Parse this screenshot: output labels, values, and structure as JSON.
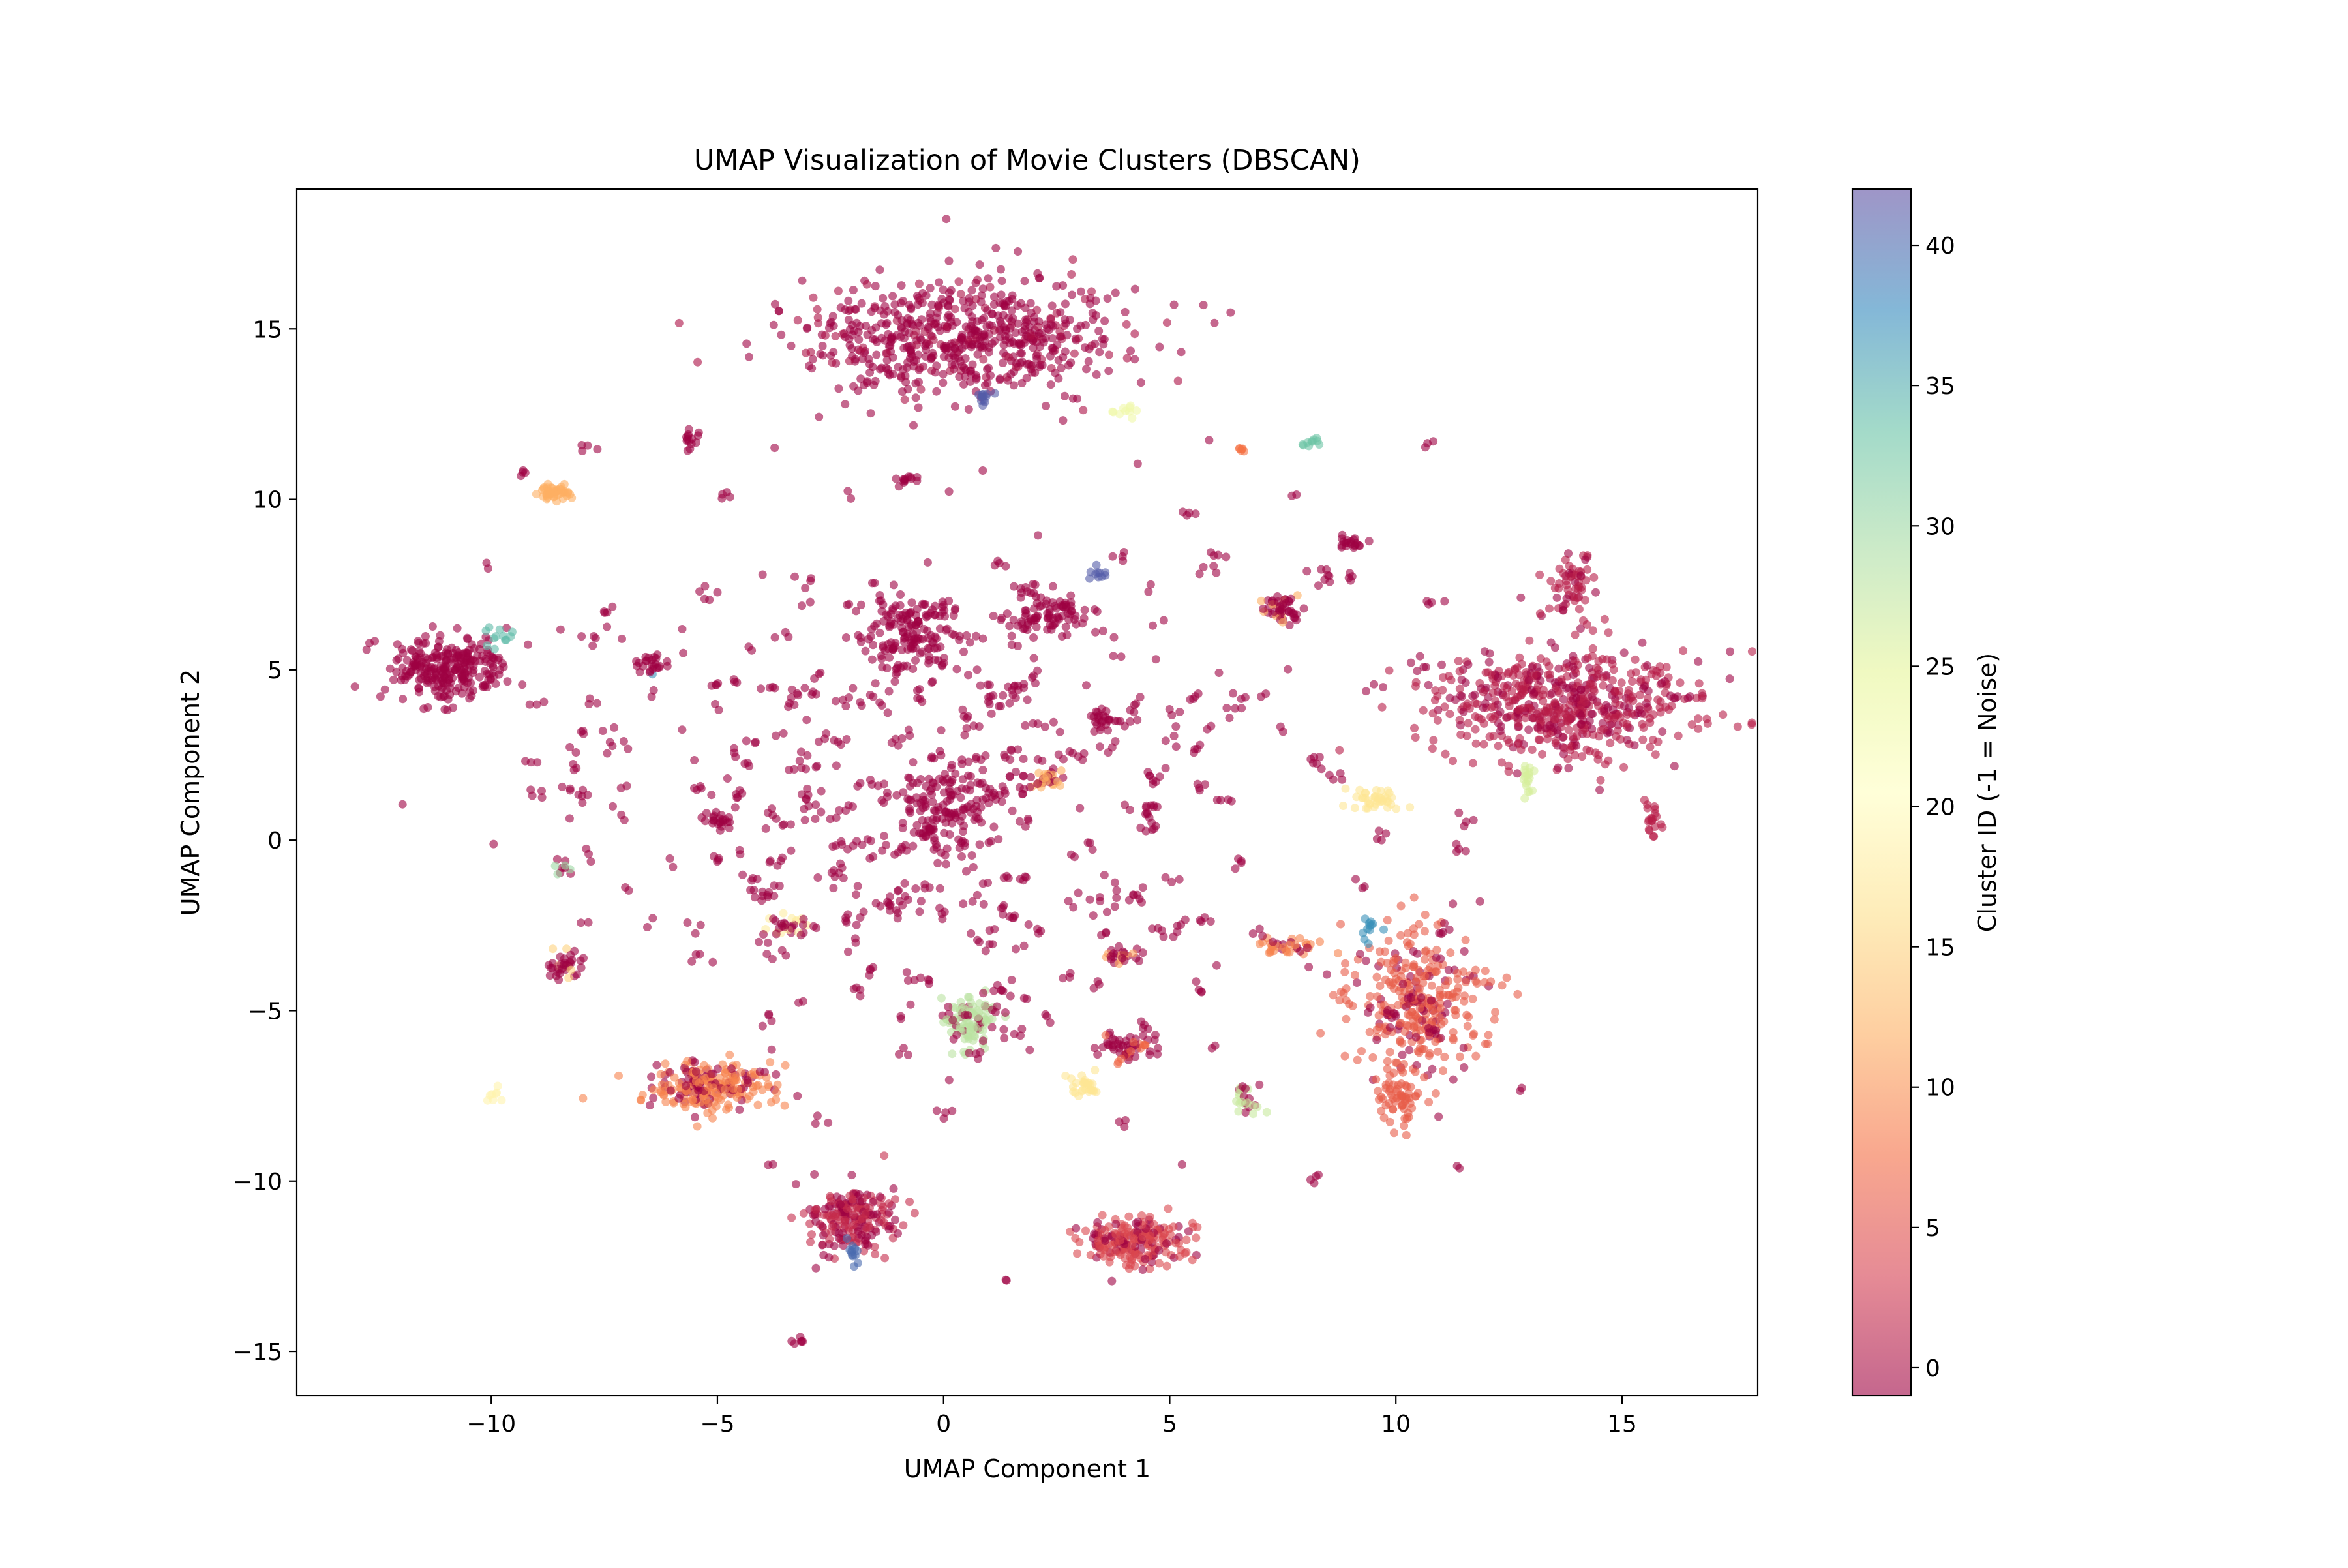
{
  "chart_data": {
    "type": "scatter",
    "title": "UMAP Visualization of Movie Clusters (DBSCAN)",
    "xlabel": "UMAP Component 1",
    "ylabel": "UMAP Component 2",
    "xlim": [
      -14.3,
      18
    ],
    "ylim": [
      -16.3,
      19.1
    ],
    "x_ticks": [
      -10,
      -5,
      0,
      5,
      10,
      15
    ],
    "y_ticks": [
      -15,
      -10,
      -5,
      0,
      5,
      10,
      15
    ],
    "x_tick_labels": [
      "−10",
      "−5",
      "0",
      "5",
      "10",
      "15"
    ],
    "y_tick_labels": [
      "−15",
      "−10",
      "−5",
      "0",
      "5",
      "10",
      "15"
    ],
    "grid": false,
    "colormap": "Spectral (alpha 0.6)",
    "colorbar": {
      "label": "Cluster ID (-1 = Noise)",
      "range": [
        -1,
        42
      ],
      "ticks": [
        0,
        5,
        10,
        15,
        20,
        25,
        30,
        35,
        40
      ],
      "tick_labels": [
        "0",
        "5",
        "10",
        "15",
        "20",
        "25",
        "30",
        "35",
        "40"
      ],
      "stops": [
        "#9e0142",
        "#d53e4f",
        "#f46d43",
        "#fdae61",
        "#fee08b",
        "#ffffbf",
        "#e6f598",
        "#abdda4",
        "#66c2a5",
        "#3288bd",
        "#5e4fa2"
      ]
    },
    "clusters": [
      {
        "id": 0,
        "cx": 0.5,
        "cy": 14.8,
        "rx": 3.3,
        "ry": 1.6,
        "n": 620,
        "mix": [
          [
            -1,
            0.85
          ],
          [
            0,
            0.15
          ]
        ]
      },
      {
        "id": 1,
        "cx": 13.7,
        "cy": 4.0,
        "rx": 2.6,
        "ry": 1.5,
        "n": 580,
        "mix": [
          [
            1,
            0.7
          ],
          [
            -1,
            0.3
          ]
        ]
      },
      {
        "id": 2,
        "cx": 13.9,
        "cy": 7.5,
        "rx": 0.5,
        "ry": 0.8,
        "n": 60,
        "mix": [
          [
            1,
            0.8
          ],
          [
            -1,
            0.2
          ]
        ]
      },
      {
        "id": 3,
        "cx": -10.9,
        "cy": 5.0,
        "rx": 1.2,
        "ry": 0.9,
        "n": 260,
        "mix": [
          [
            -1,
            1.0
          ]
        ]
      },
      {
        "id": 4,
        "cx": 10.5,
        "cy": -4.6,
        "rx": 1.3,
        "ry": 1.9,
        "n": 330,
        "mix": [
          [
            6,
            0.75
          ],
          [
            -1,
            0.25
          ]
        ]
      },
      {
        "id": 5,
        "cx": 10.1,
        "cy": -7.6,
        "rx": 0.4,
        "ry": 0.9,
        "n": 60,
        "mix": [
          [
            6,
            1.0
          ]
        ]
      },
      {
        "id": 6,
        "cx": -5.2,
        "cy": -7.2,
        "rx": 1.3,
        "ry": 0.7,
        "n": 230,
        "mix": [
          [
            9,
            0.7
          ],
          [
            -1,
            0.3
          ]
        ]
      },
      {
        "id": 7,
        "cx": -2.0,
        "cy": -11.1,
        "rx": 0.9,
        "ry": 0.9,
        "n": 200,
        "mix": [
          [
            2,
            0.6
          ],
          [
            -1,
            0.4
          ]
        ]
      },
      {
        "id": 8,
        "cx": 4.2,
        "cy": -11.8,
        "rx": 1.1,
        "ry": 0.6,
        "n": 200,
        "mix": [
          [
            4,
            0.7
          ],
          [
            -1,
            0.3
          ]
        ]
      },
      {
        "id": 9,
        "cx": 0.6,
        "cy": -5.3,
        "rx": 0.6,
        "ry": 0.6,
        "n": 110,
        "mix": [
          [
            28,
            0.7
          ],
          [
            -1,
            0.3
          ]
        ]
      },
      {
        "id": 10,
        "cx": -0.8,
        "cy": 6.2,
        "rx": 1.0,
        "ry": 1.0,
        "n": 130,
        "mix": [
          [
            -1,
            1.0
          ]
        ]
      },
      {
        "id": 11,
        "cx": 0.0,
        "cy": 1.0,
        "rx": 0.9,
        "ry": 1.0,
        "n": 110,
        "mix": [
          [
            -1,
            1.0
          ]
        ]
      },
      {
        "id": 12,
        "cx": 2.3,
        "cy": 6.6,
        "rx": 0.8,
        "ry": 0.6,
        "n": 90,
        "mix": [
          [
            -1,
            1.0
          ]
        ]
      },
      {
        "id": 13,
        "cx": -8.6,
        "cy": 10.2,
        "rx": 0.4,
        "ry": 0.2,
        "n": 45,
        "mix": [
          [
            12,
            1.0
          ]
        ]
      },
      {
        "id": 14,
        "cx": 7.5,
        "cy": 6.8,
        "rx": 0.4,
        "ry": 0.4,
        "n": 50,
        "mix": [
          [
            -1,
            0.8
          ],
          [
            12,
            0.2
          ]
        ]
      },
      {
        "id": 15,
        "cx": 9.6,
        "cy": 1.2,
        "rx": 0.5,
        "ry": 0.3,
        "n": 40,
        "mix": [
          [
            17,
            1.0
          ]
        ]
      },
      {
        "id": 16,
        "cx": 4.1,
        "cy": -6.1,
        "rx": 0.6,
        "ry": 0.4,
        "n": 55,
        "mix": [
          [
            -1,
            0.7
          ],
          [
            7,
            0.3
          ]
        ]
      },
      {
        "id": 17,
        "cx": 3.1,
        "cy": -7.2,
        "rx": 0.4,
        "ry": 0.3,
        "n": 30,
        "mix": [
          [
            17,
            1.0
          ]
        ]
      },
      {
        "id": 18,
        "cx": 2.3,
        "cy": 1.8,
        "rx": 0.3,
        "ry": 0.3,
        "n": 35,
        "mix": [
          [
            12,
            0.5
          ],
          [
            -1,
            0.5
          ]
        ]
      },
      {
        "id": 19,
        "cx": -3.4,
        "cy": -2.5,
        "rx": 0.4,
        "ry": 0.3,
        "n": 30,
        "mix": [
          [
            18,
            0.5
          ],
          [
            -1,
            0.5
          ]
        ]
      },
      {
        "id": 20,
        "cx": -8.3,
        "cy": -3.7,
        "rx": 0.4,
        "ry": 0.4,
        "n": 35,
        "mix": [
          [
            -1,
            0.8
          ],
          [
            15,
            0.2
          ]
        ]
      },
      {
        "id": 21,
        "cx": 3.9,
        "cy": -3.4,
        "rx": 0.4,
        "ry": 0.2,
        "n": 25,
        "mix": [
          [
            -1,
            0.6
          ],
          [
            11,
            0.4
          ]
        ]
      },
      {
        "id": 22,
        "cx": 6.7,
        "cy": -7.6,
        "rx": 0.3,
        "ry": 0.4,
        "n": 25,
        "mix": [
          [
            27,
            0.6
          ],
          [
            -1,
            0.4
          ]
        ]
      },
      {
        "id": 23,
        "cx": -6.5,
        "cy": 5.2,
        "rx": 0.4,
        "ry": 0.3,
        "n": 25,
        "mix": [
          [
            -1,
            0.7
          ],
          [
            37,
            0.3
          ]
        ]
      },
      {
        "id": 24,
        "cx": 9.0,
        "cy": 8.7,
        "rx": 0.3,
        "ry": 0.2,
        "n": 20,
        "mix": [
          [
            -1,
            1.0
          ]
        ]
      },
      {
        "id": 25,
        "cx": 3.6,
        "cy": 3.5,
        "rx": 0.4,
        "ry": 0.2,
        "n": 20,
        "mix": [
          [
            -1,
            1.0
          ]
        ]
      },
      {
        "id": 26,
        "cx": 7.5,
        "cy": -3.1,
        "rx": 0.9,
        "ry": 0.2,
        "n": 35,
        "mix": [
          [
            9,
            0.8
          ],
          [
            -1,
            0.2
          ]
        ]
      },
      {
        "id": 27,
        "cx": 15.7,
        "cy": 0.5,
        "rx": 0.2,
        "ry": 0.6,
        "n": 20,
        "mix": [
          [
            1,
            1.0
          ]
        ]
      },
      {
        "id": 28,
        "cx": 12.9,
        "cy": 1.7,
        "rx": 0.15,
        "ry": 0.7,
        "n": 18,
        "mix": [
          [
            26,
            1.0
          ]
        ]
      },
      {
        "id": 29,
        "cx": -9.8,
        "cy": 6.0,
        "rx": 0.3,
        "ry": 0.3,
        "n": 12,
        "mix": [
          [
            34,
            1.0
          ]
        ]
      },
      {
        "id": 30,
        "cx": 9.4,
        "cy": -2.6,
        "rx": 0.2,
        "ry": 0.3,
        "n": 12,
        "mix": [
          [
            37,
            1.0
          ]
        ]
      },
      {
        "id": 31,
        "cx": 0.9,
        "cy": 13.0,
        "rx": 0.15,
        "ry": 0.3,
        "n": 12,
        "mix": [
          [
            41,
            1.0
          ]
        ]
      },
      {
        "id": 32,
        "cx": 3.4,
        "cy": 7.8,
        "rx": 0.25,
        "ry": 0.15,
        "n": 10,
        "mix": [
          [
            41,
            1.0
          ]
        ]
      },
      {
        "id": 33,
        "cx": 8.1,
        "cy": 11.7,
        "rx": 0.2,
        "ry": 0.15,
        "n": 10,
        "mix": [
          [
            33,
            1.0
          ]
        ]
      },
      {
        "id": 34,
        "cx": 4.1,
        "cy": 12.6,
        "rx": 0.25,
        "ry": 0.15,
        "n": 10,
        "mix": [
          [
            23,
            1.0
          ]
        ]
      },
      {
        "id": 35,
        "cx": -2.0,
        "cy": -12.2,
        "rx": 0.15,
        "ry": 0.4,
        "n": 12,
        "mix": [
          [
            40,
            1.0
          ]
        ]
      },
      {
        "id": 36,
        "cx": -8.4,
        "cy": -0.8,
        "rx": 0.2,
        "ry": 0.2,
        "n": 10,
        "mix": [
          [
            30,
            0.6
          ],
          [
            -1,
            0.4
          ]
        ]
      },
      {
        "id": 37,
        "cx": -10.0,
        "cy": -7.5,
        "rx": 0.2,
        "ry": 0.2,
        "n": 8,
        "mix": [
          [
            19,
            1.0
          ]
        ]
      },
      {
        "id": 38,
        "cx": -5.0,
        "cy": 0.6,
        "rx": 0.4,
        "ry": 0.3,
        "n": 18,
        "mix": [
          [
            -1,
            1.0
          ]
        ]
      },
      {
        "id": 39,
        "cx": -1.0,
        "cy": -1.8,
        "rx": 0.4,
        "ry": 0.3,
        "n": 18,
        "mix": [
          [
            -1,
            1.0
          ]
        ]
      },
      {
        "id": 40,
        "cx": 6.6,
        "cy": 11.5,
        "rx": 0.1,
        "ry": 0.1,
        "n": 6,
        "mix": [
          [
            8,
            1.0
          ]
        ]
      },
      {
        "id": 41,
        "cx": 1.4,
        "cy": -12.9,
        "rx": 0.05,
        "ry": 0.05,
        "n": 2,
        "mix": [
          [
            -1,
            1.0
          ]
        ]
      },
      {
        "id": 42,
        "cx": -3.2,
        "cy": -14.7,
        "rx": 0.15,
        "ry": 0.1,
        "n": 6,
        "mix": [
          [
            -1,
            1.0
          ]
        ]
      },
      {
        "id": 43,
        "cx": 12.8,
        "cy": -7.3,
        "rx": 0.05,
        "ry": 0.05,
        "n": 2,
        "mix": [
          [
            -1,
            1.0
          ]
        ]
      },
      {
        "id": 44,
        "cx": 8.2,
        "cy": -9.9,
        "rx": 0.1,
        "ry": 0.1,
        "n": 4,
        "mix": [
          [
            -1,
            1.0
          ]
        ]
      },
      {
        "id": 45,
        "cx": -5.6,
        "cy": 11.7,
        "rx": 0.2,
        "ry": 0.3,
        "n": 14,
        "mix": [
          [
            -1,
            1.0
          ]
        ]
      },
      {
        "id": 46,
        "cx": -0.8,
        "cy": 10.6,
        "rx": 0.3,
        "ry": 0.15,
        "n": 12,
        "mix": [
          [
            -1,
            1.0
          ]
        ]
      }
    ],
    "noise_points": 360,
    "noise_region": {
      "xmin": -12.5,
      "xmax": 11.5,
      "ymin": -13.5,
      "ymax": 11.5,
      "core_x": 0.0,
      "core_y": 1.5,
      "spread_x": 4.6,
      "spread_y": 4.2
    }
  }
}
